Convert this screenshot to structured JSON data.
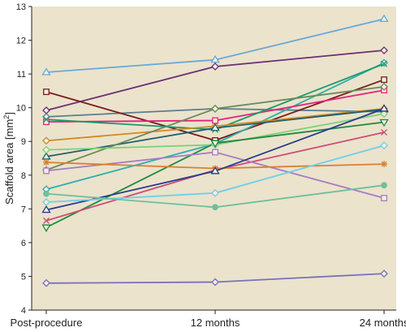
{
  "chart_data": {
    "type": "line",
    "xlabel": "",
    "ylabel": "Scaffold area [mm²]",
    "ylabel_text": "Scaffold area [mm",
    "ylabel_sup": "2",
    "ylabel_end": "]",
    "categories": [
      "Post-procedure",
      "12 months",
      "24 months"
    ],
    "ylim": [
      4,
      13
    ],
    "yticks": [
      "4",
      "5",
      "6",
      "7",
      "8",
      "9",
      "10",
      "11",
      "12",
      "13"
    ],
    "grid": false,
    "legend": "none",
    "plot_background": "#ebe3cc",
    "series": [
      {
        "color": "#6aa8d8",
        "marker": "triangle",
        "values": [
          11.05,
          11.42,
          12.63
        ]
      },
      {
        "color": "#6a2f72",
        "marker": "diamond",
        "values": [
          9.92,
          11.22,
          11.7
        ]
      },
      {
        "color": "#5c7d8f",
        "marker": "diamond",
        "values": [
          9.73,
          9.97,
          9.88
        ]
      },
      {
        "color": "#7a1a1a",
        "marker": "square",
        "values": [
          10.47,
          9.03,
          10.83
        ]
      },
      {
        "color": "#2ab0b0",
        "marker": "diamond",
        "values": [
          7.58,
          8.93,
          11.33
        ]
      },
      {
        "color": "#e8207a",
        "marker": "square",
        "values": [
          9.58,
          9.62,
          10.52
        ]
      },
      {
        "color": "#1a9a6a",
        "marker": "x",
        "values": [
          9.65,
          9.35,
          11.3
        ]
      },
      {
        "color": "#d08a1e",
        "marker": "diamond",
        "values": [
          9.02,
          9.45,
          9.97
        ]
      },
      {
        "color": "#1e5f6f",
        "marker": "triangle",
        "values": [
          8.55,
          9.4,
          9.95
        ]
      },
      {
        "color": "#6a8a5a",
        "marker": "diamond",
        "values": [
          8.15,
          9.97,
          10.62
        ]
      },
      {
        "color": "#7bd27b",
        "marker": "diamond",
        "values": [
          8.75,
          8.9,
          9.82
        ]
      },
      {
        "color": "#1e8a3e",
        "marker": "triangle-down",
        "values": [
          6.45,
          8.95,
          9.57
        ]
      },
      {
        "color": "#cc4f78",
        "marker": "x",
        "values": [
          6.65,
          8.15,
          9.27
        ]
      },
      {
        "color": "#a87bc4",
        "marker": "square",
        "values": [
          8.13,
          8.68,
          7.32
        ]
      },
      {
        "color": "#d88032",
        "marker": "star",
        "values": [
          8.38,
          8.2,
          8.33
        ]
      },
      {
        "color": "#2a3a8a",
        "marker": "triangle",
        "values": [
          6.97,
          8.12,
          9.97
        ]
      },
      {
        "color": "#6ecfe8",
        "marker": "diamond",
        "values": [
          7.2,
          7.47,
          8.88
        ]
      },
      {
        "color": "#6fbf9a",
        "marker": "circle",
        "values": [
          7.45,
          7.05,
          7.7
        ]
      },
      {
        "color": "#7872b8",
        "marker": "diamond",
        "values": [
          4.8,
          4.83,
          5.08
        ]
      }
    ]
  }
}
